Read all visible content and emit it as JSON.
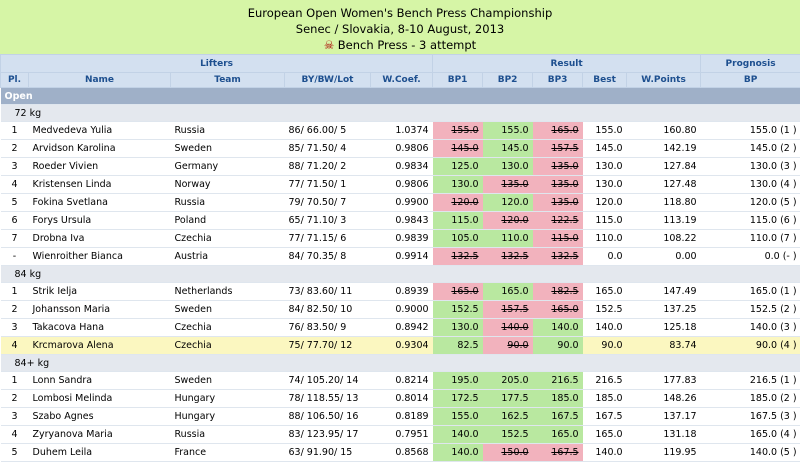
{
  "title": {
    "line1": "European Open Women's Bench Press Championship",
    "line2": "Senec / Slovakia, 8-10 August, 2013",
    "line3": "Bench Press - 3 attempt"
  },
  "headers": {
    "lifters": "Lifters",
    "result": "Result",
    "prognosis": "Prognosis",
    "pl": "Pl.",
    "name": "Name",
    "team": "Team",
    "bybwlot": "BY/BW/Lot",
    "wcoef": "W.Coef.",
    "bp1": "BP1",
    "bp2": "BP2",
    "bp3": "BP3",
    "best": "Best",
    "wpoints": "W.Points",
    "bp": "BP"
  },
  "group_label": "Open",
  "categories": [
    {
      "label": "72 kg",
      "rows": [
        {
          "pl": "1",
          "name": "Medvedeva Yulia",
          "team": "Russia",
          "bybwlot": "86/ 66.00/ 5",
          "wcoef": "1.0374",
          "bp1": "155.0",
          "bp1s": "bad",
          "bp2": "155.0",
          "bp2s": "good",
          "bp3": "165.0",
          "bp3s": "bad",
          "best": "155.0",
          "wpoints": "160.80",
          "bp": "155.0 (1 )"
        },
        {
          "pl": "2",
          "name": "Arvidson Karolina",
          "team": "Sweden",
          "bybwlot": "85/ 71.50/ 4",
          "wcoef": "0.9806",
          "bp1": "145.0",
          "bp1s": "bad",
          "bp2": "145.0",
          "bp2s": "good",
          "bp3": "157.5",
          "bp3s": "bad",
          "best": "145.0",
          "wpoints": "142.19",
          "bp": "145.0 (2 )"
        },
        {
          "pl": "3",
          "name": "Roeder Vivien",
          "team": "Germany",
          "bybwlot": "88/ 71.20/ 2",
          "wcoef": "0.9834",
          "bp1": "125.0",
          "bp1s": "good",
          "bp2": "130.0",
          "bp2s": "good",
          "bp3": "135.0",
          "bp3s": "bad",
          "best": "130.0",
          "wpoints": "127.84",
          "bp": "130.0 (3 )"
        },
        {
          "pl": "4",
          "name": "Kristensen Linda",
          "team": "Norway",
          "bybwlot": "77/ 71.50/ 1",
          "wcoef": "0.9806",
          "bp1": "130.0",
          "bp1s": "good",
          "bp2": "135.0",
          "bp2s": "bad",
          "bp3": "135.0",
          "bp3s": "bad",
          "best": "130.0",
          "wpoints": "127.48",
          "bp": "130.0 (4 )"
        },
        {
          "pl": "5",
          "name": "Fokina Svetlana",
          "team": "Russia",
          "bybwlot": "79/ 70.50/ 7",
          "wcoef": "0.9900",
          "bp1": "120.0",
          "bp1s": "bad",
          "bp2": "120.0",
          "bp2s": "good",
          "bp3": "135.0",
          "bp3s": "bad",
          "best": "120.0",
          "wpoints": "118.80",
          "bp": "120.0 (5 )"
        },
        {
          "pl": "6",
          "name": "Forys Ursula",
          "team": "Poland",
          "bybwlot": "65/ 71.10/ 3",
          "wcoef": "0.9843",
          "bp1": "115.0",
          "bp1s": "good",
          "bp2": "120.0",
          "bp2s": "bad",
          "bp3": "122.5",
          "bp3s": "bad",
          "best": "115.0",
          "wpoints": "113.19",
          "bp": "115.0 (6 )"
        },
        {
          "pl": "7",
          "name": "Drobna Iva",
          "team": "Czechia",
          "bybwlot": "77/ 71.15/ 6",
          "wcoef": "0.9839",
          "bp1": "105.0",
          "bp1s": "good",
          "bp2": "110.0",
          "bp2s": "good",
          "bp3": "115.0",
          "bp3s": "bad",
          "best": "110.0",
          "wpoints": "108.22",
          "bp": "110.0 (7 )"
        },
        {
          "pl": "-",
          "name": "Wienroither Bianca",
          "team": "Austria",
          "bybwlot": "84/ 70.35/ 8",
          "wcoef": "0.9914",
          "bp1": "132.5",
          "bp1s": "bad",
          "bp2": "132.5",
          "bp2s": "bad",
          "bp3": "132.5",
          "bp3s": "bad",
          "best": "0.0",
          "wpoints": "0.00",
          "bp": "0.0 (- )"
        }
      ]
    },
    {
      "label": "84 kg",
      "rows": [
        {
          "pl": "1",
          "name": "Strik Ielja",
          "team": "Netherlands",
          "bybwlot": "73/ 83.60/ 11",
          "wcoef": "0.8939",
          "bp1": "165.0",
          "bp1s": "bad",
          "bp2": "165.0",
          "bp2s": "good",
          "bp3": "182.5",
          "bp3s": "bad",
          "best": "165.0",
          "wpoints": "147.49",
          "bp": "165.0 (1 )"
        },
        {
          "pl": "2",
          "name": "Johansson Maria",
          "team": "Sweden",
          "bybwlot": "84/ 82.50/ 10",
          "wcoef": "0.9000",
          "bp1": "152.5",
          "bp1s": "good",
          "bp2": "157.5",
          "bp2s": "bad",
          "bp3": "165.0",
          "bp3s": "bad",
          "best": "152.5",
          "wpoints": "137.25",
          "bp": "152.5 (2 )"
        },
        {
          "pl": "3",
          "name": "Takacova Hana",
          "team": "Czechia",
          "bybwlot": "76/ 83.50/ 9",
          "wcoef": "0.8942",
          "bp1": "130.0",
          "bp1s": "good",
          "bp2": "140.0",
          "bp2s": "bad",
          "bp3": "140.0",
          "bp3s": "good",
          "best": "140.0",
          "wpoints": "125.18",
          "bp": "140.0 (3 )"
        },
        {
          "pl": "4",
          "name": "Krcmarova Alena",
          "team": "Czechia",
          "bybwlot": "75/ 77.70/ 12",
          "wcoef": "0.9304",
          "bp1": "82.5",
          "bp1s": "good",
          "bp2": "90.0",
          "bp2s": "bad",
          "bp3": "90.0",
          "bp3s": "good",
          "best": "90.0",
          "wpoints": "83.74",
          "bp": "90.0 (4 )",
          "hl": true
        }
      ]
    },
    {
      "label": "84+ kg",
      "rows": [
        {
          "pl": "1",
          "name": "Lonn Sandra",
          "team": "Sweden",
          "bybwlot": "74/ 105.20/ 14",
          "wcoef": "0.8214",
          "bp1": "195.0",
          "bp1s": "good",
          "bp2": "205.0",
          "bp2s": "good",
          "bp3": "216.5",
          "bp3s": "good",
          "best": "216.5",
          "wpoints": "177.83",
          "bp": "216.5 (1 )"
        },
        {
          "pl": "2",
          "name": "Lombosi Melinda",
          "team": "Hungary",
          "bybwlot": "78/ 118.55/ 13",
          "wcoef": "0.8014",
          "bp1": "172.5",
          "bp1s": "good",
          "bp2": "177.5",
          "bp2s": "good",
          "bp3": "185.0",
          "bp3s": "good",
          "best": "185.0",
          "wpoints": "148.26",
          "bp": "185.0 (2 )"
        },
        {
          "pl": "3",
          "name": "Szabo Agnes",
          "team": "Hungary",
          "bybwlot": "88/ 106.50/ 16",
          "wcoef": "0.8189",
          "bp1": "155.0",
          "bp1s": "good",
          "bp2": "162.5",
          "bp2s": "good",
          "bp3": "167.5",
          "bp3s": "good",
          "best": "167.5",
          "wpoints": "137.17",
          "bp": "167.5 (3 )"
        },
        {
          "pl": "4",
          "name": "Zyryanova Maria",
          "team": "Russia",
          "bybwlot": "83/ 123.95/ 17",
          "wcoef": "0.7951",
          "bp1": "140.0",
          "bp1s": "good",
          "bp2": "152.5",
          "bp2s": "good",
          "bp3": "165.0",
          "bp3s": "good",
          "best": "165.0",
          "wpoints": "131.18",
          "bp": "165.0 (4 )"
        },
        {
          "pl": "5",
          "name": "Duhem Leila",
          "team": "France",
          "bybwlot": "63/ 91.90/ 15",
          "wcoef": "0.8568",
          "bp1": "140.0",
          "bp1s": "good",
          "bp2": "150.0",
          "bp2s": "bad",
          "bp3": "167.5",
          "bp3s": "bad",
          "best": "140.0",
          "wpoints": "119.95",
          "bp": "140.0 (5 )"
        }
      ]
    }
  ]
}
